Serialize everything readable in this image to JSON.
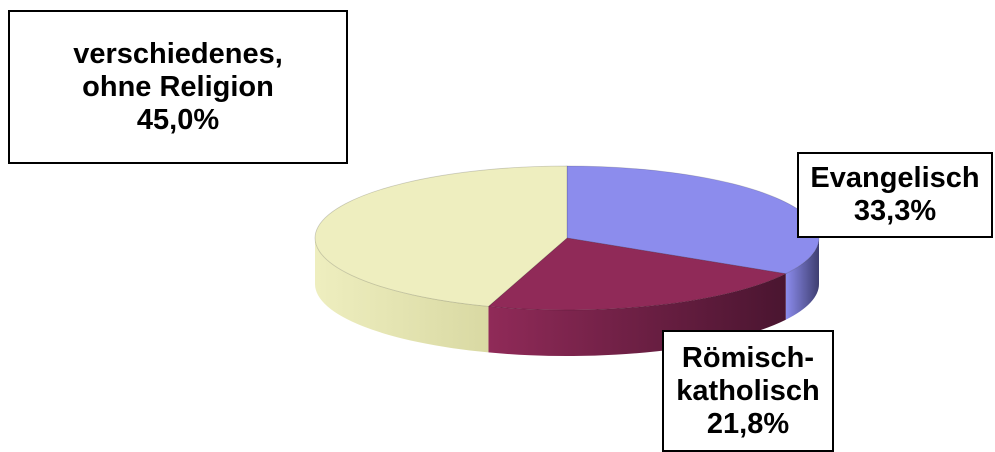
{
  "chart_data": {
    "type": "pie",
    "style": "3d",
    "slices": [
      {
        "key": "evangelisch",
        "lines": [
          "Evangelisch",
          "33,3%"
        ],
        "value": 33.3,
        "color": "#8c8ced",
        "side_color": "#3e3e70"
      },
      {
        "key": "katholisch",
        "lines": [
          "Römisch-",
          "katholisch",
          "21,8%"
        ],
        "value": 21.8,
        "color": "#902a58",
        "side_color": "#4a1530"
      },
      {
        "key": "other",
        "lines": [
          "verschiedenes,",
          "ohne Religion",
          "45,0%"
        ],
        "value": 45.0,
        "color": "#eeeebf",
        "side_color": "#d9d9a3"
      }
    ]
  }
}
